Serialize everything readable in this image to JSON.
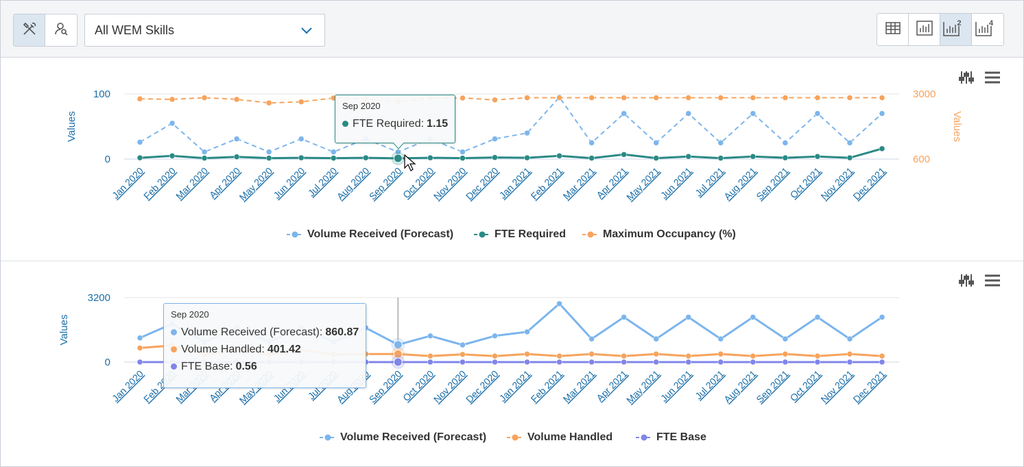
{
  "toolbar": {
    "left_tools": [
      {
        "icon": "tools-icon",
        "active": true
      },
      {
        "icon": "user-search-icon",
        "active": false
      }
    ],
    "skill_select": {
      "value": "All WEM Skills"
    },
    "view_buttons": [
      {
        "icon": "grid-view-icon",
        "active": false
      },
      {
        "icon": "single-chart-icon",
        "active": false
      },
      {
        "icon": "two-charts-icon",
        "active": true,
        "badge": "2"
      },
      {
        "icon": "four-charts-icon",
        "active": false,
        "badge": "4"
      }
    ]
  },
  "chart_data": [
    {
      "type": "line",
      "categories": [
        "Jan 2020",
        "Feb 2020",
        "Mar 2020",
        "Apr 2020",
        "May 2020",
        "Jun 2020",
        "Jul 2020",
        "Aug 2020",
        "Sep 2020",
        "Oct 2020",
        "Nov 2020",
        "Dec 2020",
        "Jan 2021",
        "Feb 2021",
        "Mar 2021",
        "Apr 2021",
        "May 2021",
        "Jun 2021",
        "Jul 2021",
        "Aug 2021",
        "Sep 2021",
        "Oct 2021",
        "Nov 2021",
        "Dec 2021"
      ],
      "ylabel": "Values",
      "ylabel_right": "Values",
      "y_ticks": [
        "100",
        "0"
      ],
      "y_right_ticks": [
        "3000",
        "600"
      ],
      "series": [
        {
          "name": "Volume Received (Forecast)",
          "axis": "left",
          "color": "#7cb5ec",
          "dash": true,
          "values": [
            26,
            55,
            11,
            31,
            11,
            31,
            11,
            31,
            11,
            31,
            11,
            31,
            40,
            95,
            25,
            70,
            25,
            70,
            25,
            70,
            25,
            70,
            25,
            70
          ]
        },
        {
          "name": "FTE Required",
          "axis": "left",
          "color": "#2a8a85",
          "dash": false,
          "values": [
            2,
            5,
            1.5,
            3.5,
            1.5,
            2,
            1.5,
            2,
            1.15,
            2,
            1.5,
            2.5,
            2,
            5,
            1.5,
            7,
            1.5,
            4,
            1.5,
            4,
            2,
            4,
            2,
            16
          ]
        },
        {
          "name": "Maximum Occupancy (%)",
          "axis": "right",
          "color": "#f7a35c",
          "dash": true,
          "values": [
            2820,
            2800,
            2860,
            2800,
            2670,
            2710,
            2850,
            2810,
            2720,
            2860,
            2850,
            2780,
            2860,
            2860,
            2860,
            2860,
            2860,
            2860,
            2860,
            2860,
            2860,
            2860,
            2860,
            2860
          ]
        }
      ],
      "tooltip": {
        "header": "Sep 2020",
        "rows": [
          {
            "label": "FTE Required:",
            "value": "1.15",
            "color": "#2a8a85"
          }
        ]
      }
    },
    {
      "type": "line",
      "categories": [
        "Jan 2020",
        "Feb 2020",
        "Mar 2020",
        "Apr 2020",
        "May 2020",
        "Jun 2020",
        "Jul 2020",
        "Aug 2020",
        "Sep 2020",
        "Oct 2020",
        "Nov 2020",
        "Dec 2020",
        "Jan 2021",
        "Feb 2021",
        "Mar 2021",
        "Apr 2021",
        "May 2021",
        "Jun 2021",
        "Jul 2021",
        "Aug 2021",
        "Sep 2021",
        "Oct 2021",
        "Nov 2021",
        "Dec 2021"
      ],
      "ylabel": "Values",
      "y_ticks": [
        "3200",
        "0"
      ],
      "series": [
        {
          "name": "Volume Received (Forecast)",
          "color": "#7cb5ec",
          "values": [
            1200,
            1900,
            1000,
            1700,
            1000,
            1700,
            1000,
            1700,
            860.87,
            1300,
            850,
            1300,
            1500,
            2900,
            1150,
            2230,
            1150,
            2230,
            1150,
            2230,
            1150,
            2230,
            1150,
            2230
          ]
        },
        {
          "name": "Volume Handled",
          "color": "#f7a35c",
          "values": [
            700,
            820,
            380,
            600,
            380,
            600,
            380,
            400,
            401.42,
            300,
            380,
            300,
            400,
            300,
            400,
            300,
            400,
            300,
            400,
            300,
            400,
            300,
            400,
            300
          ]
        },
        {
          "name": "FTE Base",
          "color": "#8085e9",
          "values": [
            1.5,
            1.5,
            1.5,
            1.5,
            1.5,
            1.5,
            1.5,
            1.5,
            0.56,
            1.5,
            1.5,
            1.5,
            1.5,
            1.5,
            1.5,
            1.5,
            1.5,
            1.5,
            1.5,
            1.5,
            1.5,
            1.5,
            1.5,
            1.5
          ]
        }
      ],
      "tooltip": {
        "header": "Sep 2020",
        "rows": [
          {
            "label": "Volume Received (Forecast):",
            "value": "860.87",
            "color": "#7cb5ec"
          },
          {
            "label": "Volume Handled:",
            "value": "401.42",
            "color": "#f7a35c"
          },
          {
            "label": "FTE Base:",
            "value": "0.56",
            "color": "#8085e9"
          }
        ]
      }
    }
  ]
}
